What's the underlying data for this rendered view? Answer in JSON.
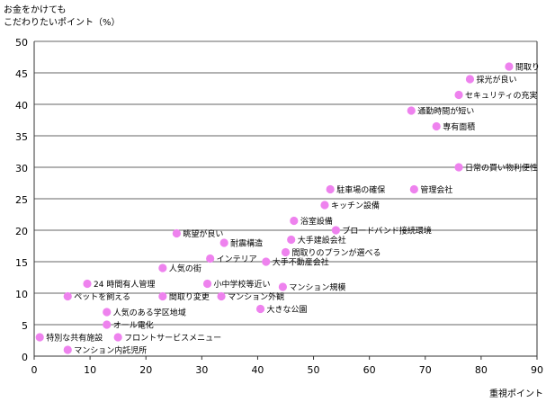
{
  "chart_data": {
    "type": "scatter",
    "ylabel_lines": [
      "お金をかけても",
      "こだわりたいポイント（%）"
    ],
    "xlabel": "重視ポイント",
    "xlim": [
      0,
      90
    ],
    "ylim": [
      0,
      50
    ],
    "xticks": [
      0,
      10,
      20,
      30,
      40,
      50,
      60,
      70,
      80,
      90
    ],
    "yticks": [
      0,
      5,
      10,
      15,
      20,
      25,
      30,
      35,
      40,
      45,
      50
    ],
    "grid": "horizontal",
    "point_color": "#ee82ee",
    "points": [
      {
        "label": "間取り",
        "x": 85,
        "y": 46
      },
      {
        "label": "採光が良い",
        "x": 78,
        "y": 44
      },
      {
        "label": "セキュリティの充実",
        "x": 76,
        "y": 41.5
      },
      {
        "label": "通勤時間が短い",
        "x": 67.5,
        "y": 39
      },
      {
        "label": "専有面積",
        "x": 72,
        "y": 36.5
      },
      {
        "label": "日常の買い物利便性",
        "x": 76,
        "y": 30
      },
      {
        "label": "駐車場の確保",
        "x": 53,
        "y": 26.5
      },
      {
        "label": "管理会社",
        "x": 68,
        "y": 26.5
      },
      {
        "label": "キッチン設備",
        "x": 52,
        "y": 24
      },
      {
        "label": "浴室設備",
        "x": 46.5,
        "y": 21.5
      },
      {
        "label": "ブロードバンド接続環境",
        "x": 54,
        "y": 20
      },
      {
        "label": "眺望が良い",
        "x": 25.5,
        "y": 19.5
      },
      {
        "label": "大手建設会社",
        "x": 46,
        "y": 18.5
      },
      {
        "label": "耐震構造",
        "x": 34,
        "y": 18
      },
      {
        "label": "間取りのプランが選べる",
        "x": 45,
        "y": 16.5
      },
      {
        "label": "インテリア",
        "x": 31.5,
        "y": 15.5
      },
      {
        "label": "大手不動産会社",
        "x": 41.5,
        "y": 15
      },
      {
        "label": "人気の街",
        "x": 23,
        "y": 14
      },
      {
        "label": "24 時間有人管理",
        "x": 9.5,
        "y": 11.5
      },
      {
        "label": "小中学校等近い",
        "x": 31,
        "y": 11.5
      },
      {
        "label": "マンション規模",
        "x": 44.5,
        "y": 11
      },
      {
        "label": "ペットを飼える",
        "x": 6,
        "y": 9.5
      },
      {
        "label": "間取り変更",
        "x": 23,
        "y": 9.5
      },
      {
        "label": "マンション外観",
        "x": 33.5,
        "y": 9.5
      },
      {
        "label": "大きな公園",
        "x": 40.5,
        "y": 7.5
      },
      {
        "label": "人気のある学区地域",
        "x": 13,
        "y": 7
      },
      {
        "label": "オール電化",
        "x": 13,
        "y": 5
      },
      {
        "label": "特別な共有施設",
        "x": 1,
        "y": 3
      },
      {
        "label": "フロントサービスメニュー",
        "x": 15,
        "y": 3
      },
      {
        "label": "マンション内託児所",
        "x": 6,
        "y": 1
      }
    ]
  }
}
